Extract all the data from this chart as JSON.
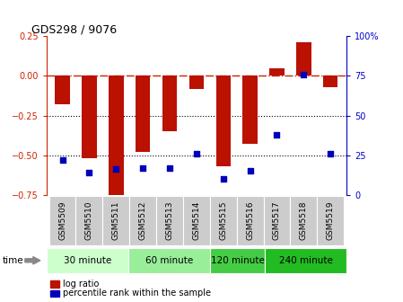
{
  "title": "GDS298 / 9076",
  "samples": [
    "GSM5509",
    "GSM5510",
    "GSM5511",
    "GSM5512",
    "GSM5513",
    "GSM5514",
    "GSM5515",
    "GSM5516",
    "GSM5517",
    "GSM5518",
    "GSM5519"
  ],
  "log_ratio": [
    -0.18,
    -0.52,
    -0.75,
    -0.48,
    -0.35,
    -0.08,
    -0.57,
    -0.43,
    0.05,
    0.21,
    -0.07
  ],
  "percentile": [
    22,
    14,
    16,
    17,
    17,
    26,
    10,
    15,
    38,
    76,
    26
  ],
  "ylim_left": [
    -0.75,
    0.25
  ],
  "ylim_right": [
    0,
    100
  ],
  "left_ticks": [
    -0.75,
    -0.5,
    -0.25,
    0,
    0.25
  ],
  "right_ticks": [
    0,
    25,
    50,
    75,
    100
  ],
  "hlines_dotted": [
    -0.5,
    -0.25
  ],
  "hline_dashdot": 0,
  "bar_color": "#bb1100",
  "point_color": "#0000bb",
  "groups": [
    {
      "label": "30 minute",
      "start": 0,
      "end": 3,
      "color": "#ccffcc"
    },
    {
      "label": "60 minute",
      "start": 3,
      "end": 6,
      "color": "#99ee99"
    },
    {
      "label": "120 minute",
      "start": 6,
      "end": 8,
      "color": "#44cc44"
    },
    {
      "label": "240 minute",
      "start": 8,
      "end": 11,
      "color": "#22bb22"
    }
  ],
  "xlabel_time": "time",
  "legend_bar": "log ratio",
  "legend_point": "percentile rank within the sample",
  "bar_width": 0.55,
  "hline0_color": "#cc2200",
  "bg_color": "#ffffff",
  "tick_label_color_left": "#cc2200",
  "tick_label_color_right": "#0000cc",
  "xticklabel_bg": "#cccccc"
}
